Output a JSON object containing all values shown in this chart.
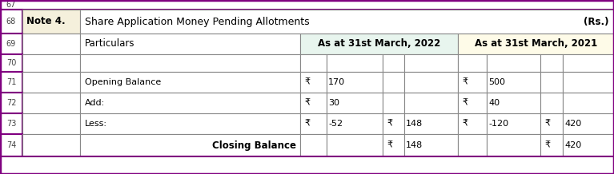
{
  "fig_w": 7.67,
  "fig_h": 2.18,
  "dpi": 100,
  "header_note_bg": "#F5F0DC",
  "col_2022_bg": "#E8F5EE",
  "col_2021_bg": "#FEFBE8",
  "border_color": "#888888",
  "outer_border_color": "#800080",
  "row68_note": "Note 4.",
  "row68_title": "Share Application Money Pending Allotments",
  "row68_rs": "(Rs.)",
  "row69_particulars": "Particulars",
  "row69_2022": "As at 31st March, 2022",
  "row69_2021": "As at 31st March, 2021",
  "row71_label": "Opening Balance",
  "row72_label": "Add:",
  "row73_label": "Less:",
  "row74_label": "Closing Balance",
  "rupee": "₹",
  "r71_v1": "170",
  "r71_v3": "500",
  "r72_v1": "30",
  "r72_v3": "40",
  "r73_v1": "-52",
  "r73_v2": "148",
  "r73_v3": "-120",
  "r73_v4": "420",
  "r74_v2": "148",
  "r74_v4": "420",
  "fs": 8.0,
  "fs_bold": 8.5,
  "fs_title": 9.0,
  "fs_rnum": 7.0
}
